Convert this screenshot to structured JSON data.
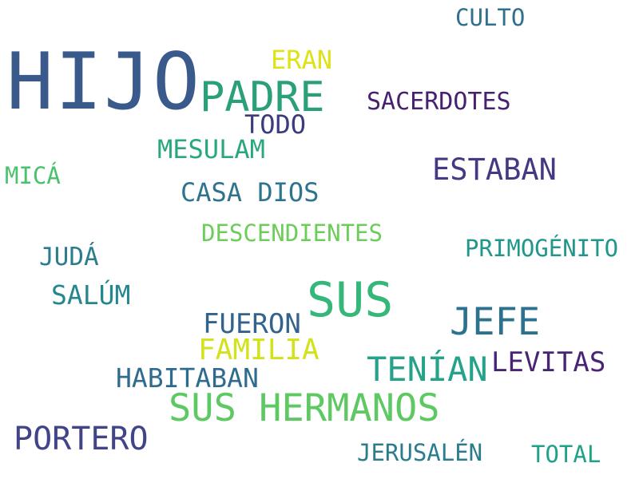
{
  "words": [
    {
      "text": "HIJO",
      "color": "#3b5a8c"
    },
    {
      "text": "PADRE",
      "color": "#2aa07a"
    },
    {
      "text": "SUS",
      "color": "#35b779"
    },
    {
      "text": "SUS HERMANOS",
      "color": "#5ec962"
    },
    {
      "text": "JEFE",
      "color": "#2c728e"
    },
    {
      "text": "TENÍAN",
      "color": "#26a28a"
    },
    {
      "text": "PORTERO",
      "color": "#414487"
    },
    {
      "text": "ESTABAN",
      "color": "#443a83"
    },
    {
      "text": "FAMILIA",
      "color": "#d2e21b"
    },
    {
      "text": "FUERON",
      "color": "#33638d"
    },
    {
      "text": "LEVITAS",
      "color": "#482475"
    },
    {
      "text": "HABITABAN",
      "color": "#2f6b8e"
    },
    {
      "text": "CASA DIOS",
      "color": "#2f748e"
    },
    {
      "text": "MESULAM",
      "color": "#29a77e"
    },
    {
      "text": "TODO",
      "color": "#3b3b7e"
    },
    {
      "text": "ERAN",
      "color": "#dde318"
    },
    {
      "text": "SACERDOTES",
      "color": "#482070"
    },
    {
      "text": "CULTO",
      "color": "#30708e"
    },
    {
      "text": "DESCENDIENTES",
      "color": "#6ccd5a"
    },
    {
      "text": "PRIMOGÉNITO",
      "color": "#21978b"
    },
    {
      "text": "JUDÁ",
      "color": "#2c7c8e"
    },
    {
      "text": "SALÚM",
      "color": "#24878e"
    },
    {
      "text": "MICÁ",
      "color": "#4ac16d"
    },
    {
      "text": "JERUSALÉN",
      "color": "#2b7d8e"
    },
    {
      "text": "TOTAL",
      "color": "#1fa287"
    }
  ]
}
